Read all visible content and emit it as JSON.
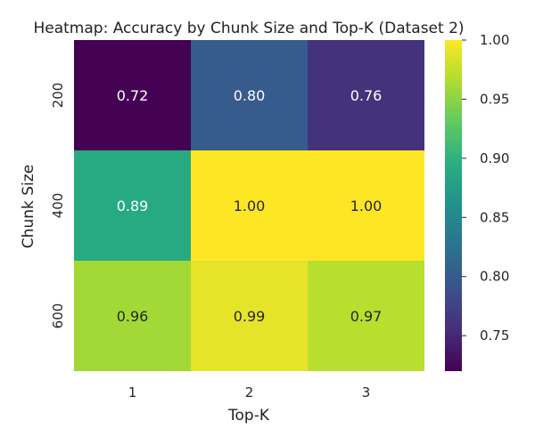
{
  "chart_data": {
    "type": "heatmap",
    "title": "Heatmap: Accuracy by Chunk Size and Top-K (Dataset 2)",
    "xlabel": "Top-K",
    "ylabel": "Chunk Size",
    "x_categories": [
      "1",
      "2",
      "3"
    ],
    "y_categories": [
      "200",
      "400",
      "600"
    ],
    "values": [
      [
        0.72,
        0.8,
        0.76
      ],
      [
        0.89,
        1.0,
        1.0
      ],
      [
        0.96,
        0.99,
        0.97
      ]
    ],
    "value_format": "0.00",
    "colormap": "viridis",
    "colorbar": {
      "vmin": 0.72,
      "vmax": 1.0,
      "ticks": [
        "0.75",
        "0.80",
        "0.85",
        "0.90",
        "0.95",
        "1.00"
      ]
    },
    "grid": false
  }
}
